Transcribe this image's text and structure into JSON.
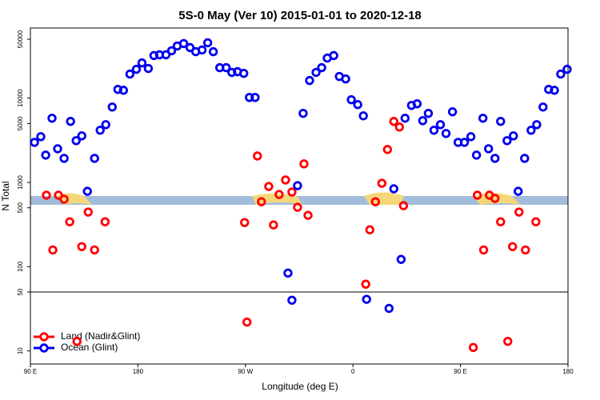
{
  "chart_data": {
    "type": "scatter",
    "title": "5S-0 May (Ver 10)   2015-01-01 to 2020-12-18",
    "x_label": "Longitude (deg E)",
    "y_label": "N Total",
    "log_y": true,
    "xlim": [
      90,
      540
    ],
    "ylim": [
      7,
      68000
    ],
    "xticks": [
      {
        "value": 90,
        "label": "90 E"
      },
      {
        "value": 180,
        "label": "180"
      },
      {
        "value": 270,
        "label": "90 W"
      },
      {
        "value": 360,
        "label": "0"
      },
      {
        "value": 450,
        "label": "90 E"
      },
      {
        "value": 540,
        "label": "180"
      }
    ],
    "yticks": [
      10,
      50,
      100,
      500,
      1000,
      5000,
      10000,
      50000
    ],
    "reference_line": 50,
    "legend": "bottom-left",
    "series": [
      {
        "name": "Land (Nadir&Glint)",
        "color": "#ff0000",
        "x": [
          103.4,
          108.8,
          113.5,
          118.2,
          122.9,
          129,
          133,
          138.4,
          143.7,
          152.5,
          269.3,
          271.3,
          280,
          283.4,
          289.5,
          293.5,
          298.2,
          303.6,
          308.9,
          313.6,
          319,
          322.4,
          370.7,
          374.1,
          378.8,
          384.2,
          388.9,
          394.2,
          398.9,
          402.3,
          460.7,
          464.1,
          469.4,
          474.2,
          478.9,
          483.6,
          489.6,
          493.6,
          499,
          504.4,
          513.1
        ],
        "values": [
          705,
          158,
          705,
          631,
          341,
          13,
          173,
          445,
          158,
          341,
          334,
          22,
          2060,
          590,
          895,
          313,
          719,
          1070,
          769,
          507,
          1660,
          407,
          62,
          274,
          590,
          977,
          2460,
          5300,
          4540,
          530,
          11,
          705,
          158,
          705,
          646,
          341,
          13,
          173,
          445,
          158,
          341
        ]
      },
      {
        "name": "Ocean (Glint)",
        "color": "#0000ee",
        "x": [
          93.4,
          98.7,
          102.8,
          108.1,
          112.8,
          118.2,
          123.6,
          128.3,
          133,
          137.7,
          143.7,
          148.4,
          153.1,
          158.5,
          163.2,
          167.9,
          173.3,
          178.7,
          183.4,
          188.7,
          193.4,
          198.1,
          203.5,
          208.2,
          212.9,
          218.3,
          223.6,
          228.4,
          233.7,
          238.4,
          243.1,
          248.5,
          253.9,
          258.6,
          263.3,
          268.6,
          273.3,
          278.1,
          305.6,
          308.9,
          313.6,
          318.3,
          323.7,
          329.1,
          333.8,
          338.5,
          343.9,
          348.6,
          353.9,
          358.6,
          364,
          368.7,
          371.4,
          390.2,
          394.2,
          400.3,
          403.6,
          409,
          413.7,
          418.4,
          423.1,
          427.8,
          433.2,
          437.9,
          443.3,
          448,
          453.3,
          458.7,
          463.4,
          468.8,
          473.5,
          478.9,
          483.6,
          489,
          494.3,
          498.3,
          503.7,
          509.1,
          513.8,
          519.1,
          523.8,
          528.6,
          533.9,
          539.3
        ],
        "values": [
          2990,
          3490,
          2110,
          5780,
          2510,
          1930,
          5300,
          3130,
          3570,
          785,
          1930,
          4160,
          4850,
          7850,
          12700,
          12400,
          19300,
          22000,
          26200,
          22500,
          32000,
          32700,
          32700,
          36500,
          41600,
          44500,
          39800,
          35600,
          37300,
          45400,
          35600,
          23000,
          23000,
          20200,
          20600,
          19700,
          10200,
          10200,
          84,
          40,
          916,
          6600,
          16200,
          20200,
          23000,
          29900,
          32000,
          18100,
          16900,
          9580,
          8390,
          6170,
          41,
          32,
          840,
          122,
          5780,
          8200,
          8570,
          5410,
          6600,
          4160,
          4850,
          3810,
          6890,
          2990,
          2990,
          3490,
          2110,
          5780,
          2510,
          1930,
          5300,
          3130,
          3570,
          785,
          1930,
          4160,
          4850,
          7850,
          12700,
          12400,
          19300,
          22000
        ]
      }
    ]
  }
}
